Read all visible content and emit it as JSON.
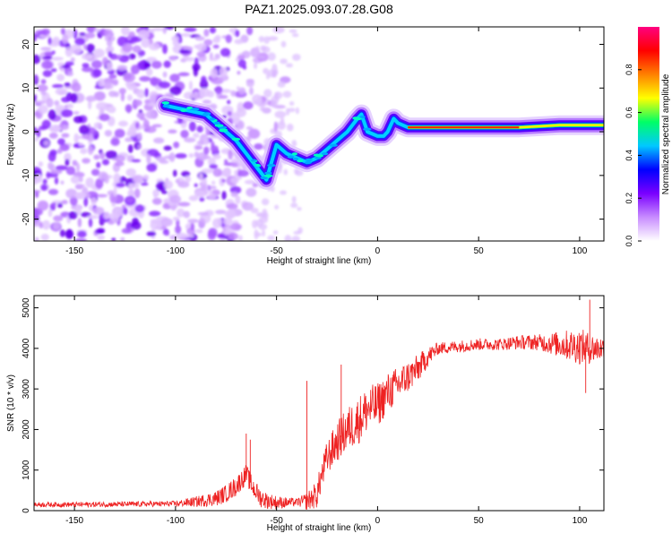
{
  "title": "PAZ1.2025.093.07.28.G08",
  "chart_data": [
    {
      "type": "heatmap",
      "title": "PAZ1.2025.093.07.28.G08",
      "xlabel": "Height of straight line (km)",
      "ylabel": "Frequency (Hz)",
      "xlim": [
        -170,
        112
      ],
      "ylim": [
        -25,
        24
      ],
      "xticks": [
        -150,
        -100,
        -50,
        0,
        50,
        100
      ],
      "yticks": [
        -20,
        -10,
        0,
        10,
        20
      ],
      "colorbar": {
        "label": "Normalized spectral amplitude",
        "range": [
          0,
          1
        ],
        "ticks": [
          "0.0",
          "0.2",
          "0.4",
          "0.6",
          "0.8"
        ],
        "colormap": [
          "#ffffff",
          "#c88cff",
          "#7a00ff",
          "#0000ff",
          "#00c8ff",
          "#00ff66",
          "#ffff00",
          "#ff8000",
          "#ff0000",
          "#ff0080"
        ]
      },
      "ridge": {
        "x": [
          -105,
          -95,
          -85,
          -80,
          -75,
          -70,
          -65,
          -60,
          -55,
          -50,
          -45,
          -40,
          -35,
          -30,
          -25,
          -20,
          -15,
          -10,
          -8,
          -5,
          0,
          3,
          5,
          8,
          10,
          15,
          30,
          50,
          70,
          90,
          112
        ],
        "y": [
          6,
          5,
          4,
          2,
          0,
          -2,
          -5,
          -8,
          -11,
          -3,
          -5,
          -6,
          -7,
          -6,
          -4,
          -2,
          0,
          3,
          4,
          0,
          -1,
          -1,
          0,
          3,
          2,
          1,
          1,
          1,
          1,
          1.5,
          1.5
        ]
      },
      "noise_region": {
        "x_from": -170,
        "x_to": -55
      }
    },
    {
      "type": "line",
      "xlabel": "Height of straight line (km)",
      "ylabel": "SNR (10 * v/v)",
      "xlim": [
        -170,
        112
      ],
      "ylim": [
        0,
        5300
      ],
      "xticks": [
        -150,
        -100,
        -50,
        0,
        50,
        100
      ],
      "yticks": [
        0,
        1000,
        2000,
        3000,
        4000,
        5000
      ],
      "color": "#ee2222",
      "envelope": {
        "x": [
          -170,
          -150,
          -120,
          -100,
          -90,
          -80,
          -75,
          -70,
          -65,
          -62,
          -58,
          -55,
          -50,
          -45,
          -40,
          -35,
          -30,
          -28,
          -25,
          -20,
          -15,
          -10,
          -5,
          0,
          5,
          10,
          15,
          20,
          25,
          30,
          40,
          50,
          60,
          70,
          80,
          90,
          100,
          105,
          110,
          112
        ],
        "y": [
          150,
          150,
          160,
          170,
          220,
          300,
          420,
          600,
          900,
          600,
          320,
          250,
          200,
          200,
          210,
          230,
          400,
          800,
          1300,
          1700,
          2000,
          2200,
          2500,
          2600,
          2900,
          3100,
          3300,
          3500,
          3800,
          4000,
          4050,
          4100,
          4100,
          4150,
          4150,
          4100,
          4050,
          4000,
          4000,
          4000
        ]
      },
      "noise": {
        "x": [
          -170,
          -100,
          -70,
          -60,
          -40,
          -30,
          -20,
          -10,
          0,
          20,
          30,
          60,
          80,
          100,
          112
        ],
        "amplitude": [
          60,
          70,
          250,
          250,
          90,
          350,
          500,
          600,
          550,
          350,
          150,
          150,
          200,
          450,
          300
        ]
      },
      "spikes": [
        {
          "x": -65,
          "y": 1900
        },
        {
          "x": -63,
          "y": 1750
        },
        {
          "x": -35,
          "y": 3200
        },
        {
          "x": -18,
          "y": 3600
        },
        {
          "x": 105,
          "y": 5200
        },
        {
          "x": 103,
          "y": 2900
        }
      ]
    }
  ]
}
